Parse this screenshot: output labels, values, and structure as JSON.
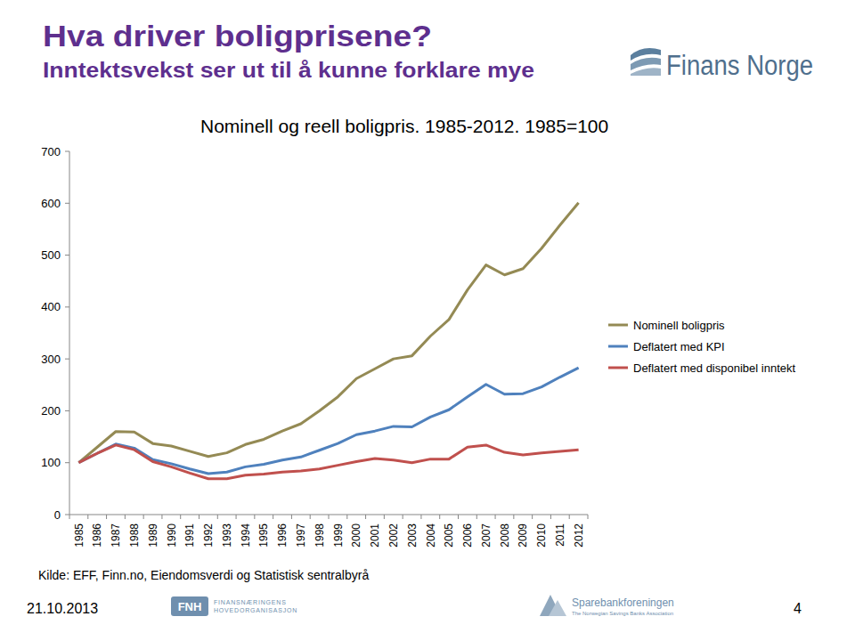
{
  "slide": {
    "title": "Hva driver boligprisene?",
    "subtitle": "Inntektsvekst ser ut til å kunne forklare mye",
    "source": "Kilde: EFF, Finn.no, Eiendomsverdi og Statistisk sentralbyrå",
    "date": "21.10.2013",
    "page_number": "4",
    "logos": {
      "finans_norge": "Finans Norge",
      "fnh": "FNH",
      "fnh_lines": [
        "FINANSNÆRINGENS",
        "HOVEDORGANISASJON"
      ],
      "sparebank": "Sparebankforeningen",
      "sparebank_sub": "The Norwegian Savings Banks Association"
    }
  },
  "chart_data": {
    "type": "line",
    "title": "Nominell og reell boligpris. 1985-2012. 1985=100",
    "categories": [
      "1985",
      "1986",
      "1987",
      "1988",
      "1989",
      "1990",
      "1991",
      "1992",
      "1993",
      "1994",
      "1995",
      "1996",
      "1997",
      "1998",
      "1999",
      "2000",
      "2001",
      "2002",
      "2003",
      "2004",
      "2005",
      "2006",
      "2007",
      "2008",
      "2009",
      "2010",
      "2011",
      "2012"
    ],
    "series": [
      {
        "name": "Nominell boligpris",
        "color": "#948a54",
        "values": [
          100,
          130,
          160,
          159,
          137,
          132,
          122,
          112,
          119,
          135,
          145,
          161,
          175,
          200,
          227,
          262,
          281,
          300,
          306,
          344,
          376,
          433,
          481,
          462,
          474,
          513,
          558,
          601
        ]
      },
      {
        "name": "Deflatert med KPI",
        "color": "#4f81bd",
        "values": [
          100,
          118,
          136,
          128,
          106,
          98,
          88,
          79,
          82,
          92,
          97,
          105,
          111,
          124,
          137,
          154,
          161,
          170,
          169,
          188,
          202,
          227,
          251,
          232,
          233,
          246,
          265,
          283
        ]
      },
      {
        "name": "Deflatert med disponibel inntekt",
        "color": "#c0504d",
        "values": [
          100,
          118,
          134,
          125,
          102,
          92,
          80,
          69,
          69,
          76,
          78,
          82,
          84,
          88,
          95,
          102,
          108,
          105,
          100,
          107,
          107,
          130,
          134,
          120,
          115,
          119,
          122,
          125
        ]
      }
    ],
    "ylim": [
      0,
      700
    ],
    "yticks": [
      0,
      100,
      200,
      300,
      400,
      500,
      600,
      700
    ],
    "grid": false,
    "legend": "right"
  }
}
